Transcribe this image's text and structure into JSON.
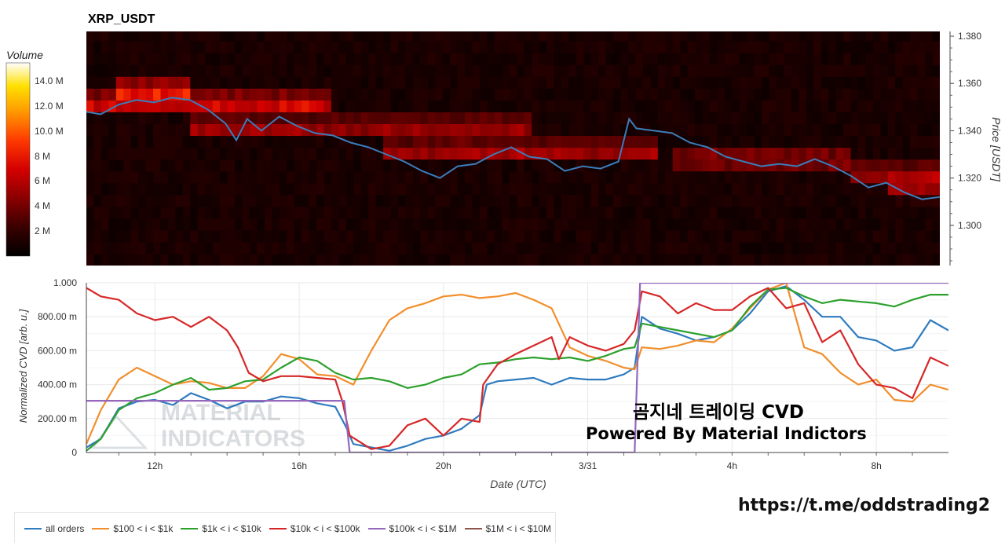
{
  "chart_data": [
    {
      "type": "heatmap",
      "title": "XRP_USDT",
      "ylabel": "Price [USDT]",
      "ylim": [
        1.283,
        1.382
      ],
      "yticks": [
        "1.380",
        "1.360",
        "1.340",
        "1.320",
        "1.300"
      ],
      "colorbar": {
        "title": "Volume",
        "ticks": [
          "14.0 M",
          "12.0 M",
          "10.0 M",
          "8 M",
          "6 M",
          "4 M",
          "2 M"
        ],
        "colors": [
          "#000000",
          "#3a0000",
          "#8a0000",
          "#d40000",
          "#ff3a00",
          "#ff9a00",
          "#ffe000",
          "#ffffff"
        ]
      },
      "hot_bands": [
        {
          "price": 1.352,
          "from_h": 10.1,
          "to_h": 17.0,
          "level": 0.9
        },
        {
          "price": 1.358,
          "from_h": 11.0,
          "to_h": 13.0,
          "level": 0.7
        },
        {
          "price": 1.342,
          "from_h": 13.0,
          "to_h": 22.5,
          "level": 0.6
        },
        {
          "price": 1.332,
          "from_h": 18.5,
          "to_h": 26.0,
          "level": 0.65
        },
        {
          "price": 1.328,
          "from_h": 26.5,
          "to_h": 31.5,
          "level": 0.6
        },
        {
          "price": 1.322,
          "from_h": 31.5,
          "to_h": 34.0,
          "level": 0.55
        },
        {
          "price": 1.316,
          "from_h": 32.5,
          "to_h": 34.0,
          "level": 0.5
        }
      ],
      "series": [
        {
          "color": "#3b7dba",
          "x": [
            10.1,
            10.5,
            11,
            11.5,
            12,
            12.5,
            13,
            13.5,
            14,
            14.3,
            14.6,
            15,
            15.5,
            16,
            16.5,
            17,
            17.5,
            18,
            18.5,
            19,
            19.5,
            20,
            20.5,
            21,
            21.5,
            22,
            22.5,
            23,
            23.5,
            24,
            24.5,
            25,
            25.3,
            25.5,
            26,
            26.5,
            27,
            27.5,
            28,
            28.5,
            29,
            29.5,
            30,
            30.5,
            31,
            31.5,
            32,
            32.5,
            33,
            33.5,
            34
          ],
          "values": [
            1.348,
            1.347,
            1.351,
            1.353,
            1.352,
            1.354,
            1.353,
            1.349,
            1.343,
            1.336,
            1.345,
            1.34,
            1.346,
            1.342,
            1.339,
            1.338,
            1.335,
            1.333,
            1.33,
            1.327,
            1.323,
            1.32,
            1.325,
            1.326,
            1.33,
            1.333,
            1.329,
            1.328,
            1.323,
            1.325,
            1.324,
            1.327,
            1.345,
            1.341,
            1.34,
            1.339,
            1.335,
            1.333,
            1.329,
            1.327,
            1.325,
            1.326,
            1.325,
            1.328,
            1.325,
            1.321,
            1.316,
            1.318,
            1.314,
            1.311,
            1.312
          ]
        }
      ]
    },
    {
      "type": "line",
      "xlabel": "Date (UTC)",
      "ylabel": "Normalized CVD [arb. u.]",
      "xlim": [
        10.1,
        34.0
      ],
      "ylim": [
        0,
        1.0
      ],
      "xticks": [
        {
          "h": 12,
          "label": "12h"
        },
        {
          "h": 16,
          "label": "16h"
        },
        {
          "h": 20,
          "label": "20h"
        },
        {
          "h": 24,
          "label": "3/31"
        },
        {
          "h": 28,
          "label": "4h"
        },
        {
          "h": 32,
          "label": "8h"
        }
      ],
      "yticks": [
        {
          "v": 0,
          "label": "0"
        },
        {
          "v": 0.2,
          "label": "200.00 m"
        },
        {
          "v": 0.4,
          "label": "400.00 m"
        },
        {
          "v": 0.6,
          "label": "600.00 m"
        },
        {
          "v": 0.8,
          "label": "800.00 m"
        },
        {
          "v": 1.0,
          "label": "1.000"
        }
      ],
      "series": [
        {
          "name": "all orders",
          "color": "#2f7bbf",
          "x": [
            10.1,
            10.5,
            11,
            11.5,
            12,
            12.5,
            13,
            13.5,
            14,
            14.5,
            15,
            15.5,
            16,
            16.5,
            17,
            17.3,
            17.5,
            18,
            18.5,
            19,
            19.5,
            20,
            20.5,
            21,
            21.2,
            21.5,
            22,
            22.5,
            23,
            23.5,
            24,
            24.5,
            25,
            25.3,
            25.5,
            26,
            26.5,
            27,
            27.5,
            28,
            28.5,
            29,
            29.5,
            30,
            30.5,
            31,
            31.5,
            32,
            32.5,
            33,
            33.5,
            34
          ],
          "values": [
            0.03,
            0.08,
            0.26,
            0.3,
            0.31,
            0.28,
            0.35,
            0.31,
            0.26,
            0.3,
            0.3,
            0.33,
            0.32,
            0.29,
            0.27,
            0.15,
            0.05,
            0.03,
            0.01,
            0.04,
            0.08,
            0.1,
            0.14,
            0.22,
            0.4,
            0.42,
            0.43,
            0.44,
            0.4,
            0.44,
            0.43,
            0.43,
            0.46,
            0.5,
            0.8,
            0.73,
            0.7,
            0.66,
            0.68,
            0.72,
            0.82,
            0.95,
            0.98,
            0.9,
            0.8,
            0.8,
            0.68,
            0.66,
            0.6,
            0.62,
            0.78,
            0.72
          ]
        },
        {
          "name": "$100 < i < $1k",
          "color": "#f28e2b",
          "x": [
            10.1,
            10.5,
            11,
            11.5,
            12,
            12.5,
            13,
            13.5,
            14,
            14.5,
            15,
            15.5,
            16,
            16.5,
            17,
            17.5,
            18,
            18.5,
            19,
            19.5,
            20,
            20.5,
            21,
            21.5,
            22,
            22.5,
            23,
            23.5,
            24,
            24.5,
            25,
            25.3,
            25.5,
            26,
            26.5,
            27,
            27.5,
            28,
            28.5,
            29,
            29.5,
            30,
            30.5,
            31,
            31.5,
            32,
            32.5,
            33,
            33.5,
            34
          ],
          "values": [
            0.05,
            0.25,
            0.43,
            0.5,
            0.45,
            0.4,
            0.42,
            0.41,
            0.38,
            0.38,
            0.45,
            0.58,
            0.55,
            0.46,
            0.45,
            0.4,
            0.6,
            0.78,
            0.85,
            0.88,
            0.92,
            0.93,
            0.91,
            0.92,
            0.94,
            0.9,
            0.85,
            0.62,
            0.57,
            0.54,
            0.5,
            0.49,
            0.62,
            0.61,
            0.63,
            0.66,
            0.65,
            0.73,
            0.85,
            0.96,
            1.0,
            0.62,
            0.58,
            0.47,
            0.4,
            0.43,
            0.31,
            0.3,
            0.4,
            0.37
          ]
        },
        {
          "name": "$1k < i < $10k",
          "color": "#2ca02c",
          "x": [
            10.1,
            10.5,
            11,
            11.5,
            12,
            12.5,
            13,
            13.5,
            14,
            14.5,
            15,
            15.5,
            16,
            16.5,
            17,
            17.5,
            18,
            18.5,
            19,
            19.5,
            20,
            20.5,
            21,
            21.5,
            22,
            22.5,
            23,
            23.5,
            24,
            24.5,
            25,
            25.3,
            25.5,
            26,
            26.5,
            27,
            27.5,
            28,
            28.5,
            29,
            29.5,
            30,
            30.5,
            31,
            31.5,
            32,
            32.5,
            33,
            33.5,
            34
          ],
          "values": [
            0.01,
            0.08,
            0.25,
            0.32,
            0.35,
            0.4,
            0.44,
            0.37,
            0.38,
            0.42,
            0.43,
            0.5,
            0.56,
            0.54,
            0.47,
            0.43,
            0.44,
            0.42,
            0.38,
            0.4,
            0.44,
            0.46,
            0.52,
            0.53,
            0.55,
            0.56,
            0.55,
            0.56,
            0.54,
            0.57,
            0.61,
            0.62,
            0.76,
            0.74,
            0.72,
            0.7,
            0.68,
            0.72,
            0.86,
            0.96,
            0.97,
            0.92,
            0.88,
            0.9,
            0.89,
            0.88,
            0.86,
            0.9,
            0.93,
            0.93
          ]
        },
        {
          "name": "$10k < i < $100k",
          "color": "#d62728",
          "x": [
            10.1,
            10.5,
            11,
            11.5,
            12,
            12.5,
            13,
            13.5,
            14,
            14.3,
            14.6,
            15,
            15.5,
            16,
            16.5,
            17,
            17.2,
            17.4,
            18,
            18.5,
            19,
            19.5,
            20,
            20.5,
            21,
            21.1,
            21.5,
            22,
            22.5,
            23,
            23.2,
            23.5,
            24,
            24.5,
            25,
            25.3,
            25.5,
            26,
            26.5,
            27,
            27.5,
            28,
            28.5,
            29,
            29.5,
            30,
            30.5,
            31,
            31.5,
            32,
            32.5,
            33,
            33.5,
            34
          ],
          "values": [
            0.97,
            0.92,
            0.9,
            0.82,
            0.78,
            0.8,
            0.74,
            0.8,
            0.72,
            0.62,
            0.47,
            0.42,
            0.45,
            0.45,
            0.44,
            0.43,
            0.3,
            0.1,
            0.02,
            0.04,
            0.16,
            0.2,
            0.1,
            0.2,
            0.18,
            0.4,
            0.52,
            0.58,
            0.63,
            0.68,
            0.55,
            0.68,
            0.63,
            0.6,
            0.64,
            0.72,
            0.95,
            0.92,
            0.82,
            0.88,
            0.84,
            0.84,
            0.92,
            0.97,
            0.85,
            0.88,
            0.65,
            0.72,
            0.52,
            0.4,
            0.38,
            0.32,
            0.56,
            0.51
          ]
        },
        {
          "name": "$100k < i < $1M",
          "color": "#9467bd",
          "x": [
            10.1,
            17.25,
            17.4,
            25.3,
            25.45,
            34
          ],
          "values": [
            0.305,
            0.305,
            0.0,
            0.0,
            1.0,
            1.0
          ]
        },
        {
          "name": "$1M < i < $10M",
          "color": "#8c564b",
          "x": [],
          "values": []
        }
      ]
    }
  ],
  "annotations": {
    "watermark_line1": "MATERIAL",
    "watermark_line2": "INDICATORS",
    "overlay_line1": "곰지네 트레이딩 CVD",
    "overlay_line2": "Powered By Material Indictors",
    "link": "https://t.me/oddstrading2"
  }
}
